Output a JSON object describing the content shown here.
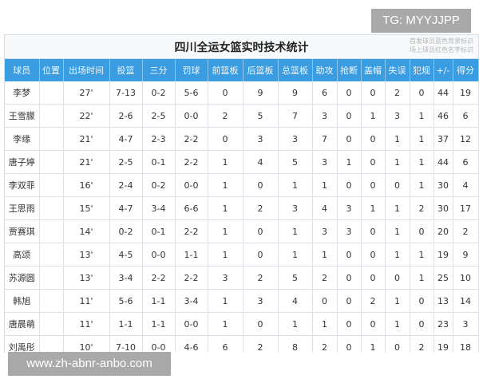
{
  "watermark_top": "TG: MYYJJPP",
  "watermark_bottom": "www.zh-abnr-anbo.com",
  "table": {
    "title": "四川全运女篮实时技术统计",
    "notes": [
      "首发球员蓝色背景标识",
      "场上球员红色名字标识"
    ],
    "header_color": "#3b9de1",
    "columns": [
      "球员",
      "位置",
      "出场时间",
      "投篮",
      "三分",
      "罚球",
      "前篮板",
      "后篮板",
      "总篮板",
      "助攻",
      "抢断",
      "盖帽",
      "失误",
      "犯规",
      "+/-",
      "得分"
    ],
    "rows": [
      [
        "李梦",
        "",
        "27'",
        "7-13",
        "0-2",
        "5-6",
        "0",
        "9",
        "9",
        "6",
        "0",
        "0",
        "2",
        "0",
        "44",
        "19"
      ],
      [
        "王雪朦",
        "",
        "22'",
        "2-6",
        "2-5",
        "0-0",
        "2",
        "5",
        "7",
        "3",
        "0",
        "1",
        "3",
        "1",
        "46",
        "6"
      ],
      [
        "李缘",
        "",
        "21'",
        "4-7",
        "2-3",
        "2-2",
        "0",
        "3",
        "3",
        "7",
        "0",
        "0",
        "1",
        "1",
        "37",
        "12"
      ],
      [
        "唐子婷",
        "",
        "21'",
        "2-5",
        "0-1",
        "2-2",
        "1",
        "4",
        "5",
        "3",
        "1",
        "0",
        "1",
        "1",
        "44",
        "6"
      ],
      [
        "李双菲",
        "",
        "16'",
        "2-4",
        "0-2",
        "0-0",
        "1",
        "0",
        "1",
        "1",
        "0",
        "0",
        "0",
        "1",
        "30",
        "4"
      ],
      [
        "王思雨",
        "",
        "15'",
        "4-7",
        "3-4",
        "6-6",
        "1",
        "2",
        "3",
        "4",
        "3",
        "1",
        "1",
        "2",
        "30",
        "17"
      ],
      [
        "贾赛琪",
        "",
        "14'",
        "0-2",
        "0-1",
        "2-2",
        "1",
        "0",
        "1",
        "3",
        "3",
        "0",
        "1",
        "0",
        "20",
        "2"
      ],
      [
        "高颂",
        "",
        "13'",
        "4-5",
        "0-0",
        "1-1",
        "1",
        "0",
        "1",
        "1",
        "0",
        "0",
        "1",
        "1",
        "19",
        "9"
      ],
      [
        "苏源圆",
        "",
        "13'",
        "3-4",
        "2-2",
        "2-2",
        "3",
        "2",
        "5",
        "2",
        "0",
        "0",
        "0",
        "1",
        "25",
        "10"
      ],
      [
        "韩旭",
        "",
        "11'",
        "5-6",
        "1-1",
        "3-4",
        "1",
        "3",
        "4",
        "0",
        "0",
        "2",
        "1",
        "0",
        "13",
        "14"
      ],
      [
        "唐晨萌",
        "",
        "11'",
        "1-1",
        "1-1",
        "0-0",
        "1",
        "0",
        "1",
        "1",
        "0",
        "0",
        "1",
        "0",
        "23",
        "3"
      ],
      [
        "刘禹彤",
        "",
        "10'",
        "7-10",
        "0-0",
        "4-6",
        "6",
        "2",
        "8",
        "2",
        "0",
        "1",
        "0",
        "2",
        "19",
        "18"
      ]
    ]
  }
}
